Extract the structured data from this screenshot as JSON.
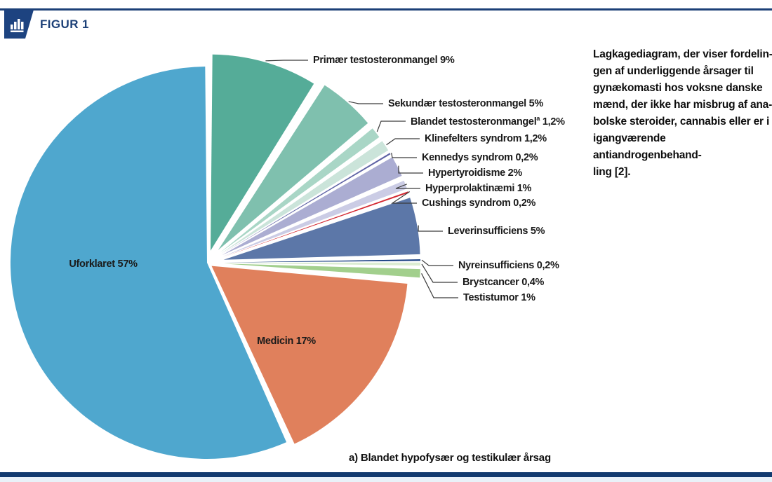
{
  "header": {
    "title": "FIGUR 1"
  },
  "caption": {
    "lines": [
      "Lagkagediagram, der viser fordelin-",
      "gen af underliggende årsager til",
      "gynækomasti hos voksne danske",
      "mænd, der ikke har misbrug af ana-",
      "bolske steroider, cannabis eller er i",
      "igangværende antiandrogenbehand-",
      "ling [2]."
    ]
  },
  "footnote": "a) Blandet hypofysær og testikulær årsag",
  "colors": {
    "accent_navy": "#1C4077",
    "leader_line": "#3a3a3a",
    "label_text": "#1a1a1a"
  },
  "chart_data": {
    "type": "pie",
    "title": "",
    "unit": "%",
    "legend_position": "callout-labels-right",
    "slices": [
      {
        "label": "Primær testosteronmangel",
        "pct_label": "9%",
        "value": 9,
        "color": "#55AC98"
      },
      {
        "label": "Sekundær testosteronmangel",
        "pct_label": "5%",
        "value": 5,
        "color": "#7FC0AE"
      },
      {
        "label": "Blandet testosteronmangel",
        "sup": "a",
        "pct_label": "1,2%",
        "value": 1.2,
        "color": "#A9D6C6"
      },
      {
        "label": "Klinefelters syndrom",
        "pct_label": "1,2%",
        "value": 1.2,
        "color": "#CBE4DA"
      },
      {
        "label": "Kennedys syndrom",
        "pct_label": "0,2%",
        "value": 0.2,
        "color": "#5F63A5"
      },
      {
        "label": "Hypertyroidisme",
        "pct_label": "2%",
        "value": 2,
        "color": "#ABADD2"
      },
      {
        "label": "Hyperprolaktinæmi",
        "pct_label": "1%",
        "value": 1,
        "color": "#CBCCE5"
      },
      {
        "label": "Cushings syndrom",
        "pct_label": "0,2%",
        "value": 0.2,
        "color": "#D42A33"
      },
      {
        "label": "Leverinsufficiens",
        "pct_label": "5%",
        "value": 5,
        "color": "#5C77A8"
      },
      {
        "label": "Nyreinsufficiens",
        "pct_label": "0,2%",
        "value": 0.2,
        "color": "#10387D"
      },
      {
        "label": "Brystcancer",
        "pct_label": "0,4%",
        "value": 0.4,
        "color": "#DCEDD2"
      },
      {
        "label": "Testistumor",
        "pct_label": "1%",
        "value": 1,
        "color": "#A2CF8D"
      },
      {
        "label": "Medicin",
        "pct_label": "17%",
        "value": 17,
        "color": "#E0805C",
        "label_inside": true
      },
      {
        "label": "Uforklaret",
        "pct_label": "57%",
        "value": 57,
        "color": "#4FA7CE",
        "label_inside": true
      }
    ]
  }
}
